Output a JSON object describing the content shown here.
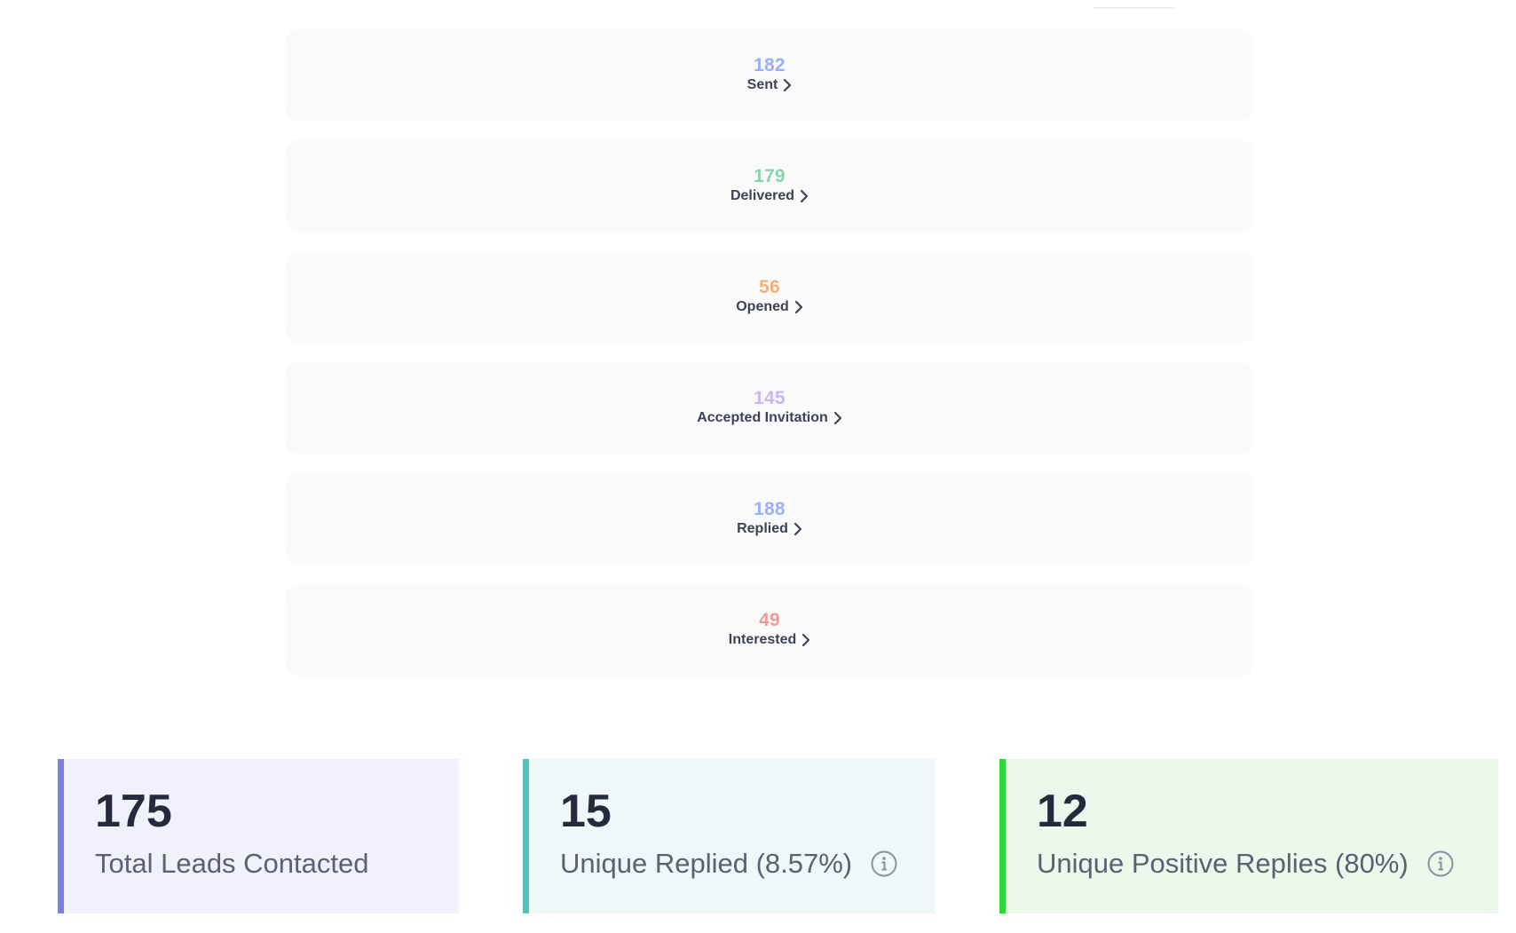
{
  "funnel": {
    "stages": [
      {
        "value": "182",
        "label": "Sent",
        "color": "#9ab0f2"
      },
      {
        "value": "179",
        "label": "Delivered",
        "color": "#86d6ad"
      },
      {
        "value": "56",
        "label": "Opened",
        "color": "#f5b07a"
      },
      {
        "value": "145",
        "label": "Accepted Invitation",
        "color": "#cbb4f2"
      },
      {
        "value": "188",
        "label": "Replied",
        "color": "#9ab0f2"
      },
      {
        "value": "49",
        "label": "Interested",
        "color": "#ef9a9a"
      }
    ]
  },
  "stats": {
    "total_leads": {
      "value": "175",
      "label": "Total Leads Contacted",
      "bg": "#f1f1fc",
      "accent": "#7b7fe8"
    },
    "unique_replied": {
      "value": "15",
      "label": "Unique Replied (8.57%)",
      "bg": "#eff7f9",
      "accent": "#4dc4c0"
    },
    "unique_positive": {
      "value": "12",
      "label": "Unique Positive Replies (80%)",
      "bg": "#edf8ed",
      "accent": "#2ed43a"
    }
  },
  "icons": {
    "chevron": "chevron-right-icon",
    "info": "info-circle-icon"
  }
}
